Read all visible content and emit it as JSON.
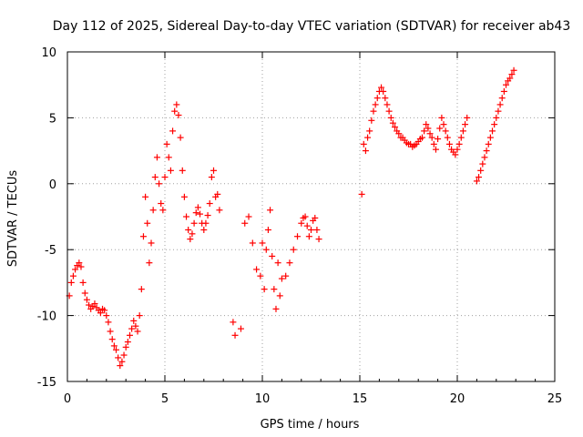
{
  "chart_data": {
    "type": "scatter",
    "title": "Day 112 of 2025, Sidereal Day-to-day VTEC variation (SDTVAR) for receiver ab43",
    "xlabel": "GPS time / hours",
    "ylabel": "SDTVAR / TECUs",
    "xlim": [
      0,
      25
    ],
    "ylim": [
      -15,
      10
    ],
    "xticks": [
      "0",
      "5",
      "10",
      "15",
      "20",
      "25"
    ],
    "yticks": [
      "10",
      "5",
      "0",
      "-5",
      "-10",
      "-15"
    ],
    "grid": true,
    "marker": "+",
    "color": "#ff0000",
    "series": [
      {
        "name": "SDTVAR",
        "x": [
          0.1,
          0.2,
          0.3,
          0.4,
          0.5,
          0.6,
          0.7,
          0.8,
          0.9,
          1.0,
          1.1,
          1.2,
          1.3,
          1.4,
          1.5,
          1.6,
          1.7,
          1.8,
          1.9,
          2.0,
          2.1,
          2.2,
          2.3,
          2.4,
          2.5,
          2.6,
          2.7,
          2.8,
          2.9,
          3.0,
          3.1,
          3.2,
          3.3,
          3.4,
          3.5,
          3.6,
          3.7,
          3.8,
          3.9,
          4.0,
          4.1,
          4.2,
          4.3,
          4.4,
          4.5,
          4.6,
          4.7,
          4.8,
          4.9,
          5.0,
          5.1,
          5.2,
          5.3,
          5.4,
          5.5,
          5.6,
          5.7,
          5.8,
          5.9,
          6.0,
          6.1,
          6.2,
          6.3,
          6.4,
          6.5,
          6.6,
          6.7,
          6.8,
          6.9,
          7.0,
          7.1,
          7.2,
          7.3,
          7.4,
          7.5,
          7.6,
          7.7,
          7.8,
          8.5,
          8.6,
          8.9,
          9.1,
          9.3,
          9.5,
          9.7,
          9.9,
          10.0,
          10.1,
          10.2,
          10.3,
          10.4,
          10.5,
          10.6,
          10.7,
          10.8,
          10.9,
          11.0,
          11.2,
          11.4,
          11.6,
          11.8,
          12.0,
          12.1,
          12.2,
          12.3,
          12.4,
          12.5,
          12.6,
          12.7,
          12.8,
          12.9,
          15.1,
          15.2,
          15.3,
          15.4,
          15.5,
          15.6,
          15.7,
          15.8,
          15.9,
          16.0,
          16.1,
          16.2,
          16.3,
          16.4,
          16.5,
          16.6,
          16.7,
          16.8,
          16.9,
          17.0,
          17.1,
          17.2,
          17.3,
          17.4,
          17.5,
          17.6,
          17.7,
          17.8,
          17.9,
          18.0,
          18.1,
          18.2,
          18.3,
          18.4,
          18.5,
          18.6,
          18.7,
          18.8,
          18.9,
          19.0,
          19.1,
          19.2,
          19.3,
          19.4,
          19.5,
          19.6,
          19.7,
          19.8,
          19.9,
          20.0,
          20.1,
          20.2,
          20.3,
          20.4,
          20.5,
          21.0,
          21.1,
          21.2,
          21.3,
          21.4,
          21.5,
          21.6,
          21.7,
          21.8,
          21.9,
          22.0,
          22.1,
          22.2,
          22.3,
          22.4,
          22.5,
          22.6,
          22.7,
          22.8,
          22.9
        ],
        "y": [
          -8.5,
          -7.5,
          -7.0,
          -6.5,
          -6.2,
          -6.0,
          -6.3,
          -7.5,
          -8.3,
          -8.8,
          -9.2,
          -9.5,
          -9.3,
          -9.1,
          -9.4,
          -9.6,
          -9.8,
          -9.5,
          -9.6,
          -10.0,
          -10.5,
          -11.2,
          -11.8,
          -12.3,
          -12.6,
          -13.2,
          -13.8,
          -13.5,
          -13.0,
          -12.4,
          -12.0,
          -11.5,
          -11.0,
          -10.4,
          -10.8,
          -11.2,
          -10.0,
          -8.0,
          -4.0,
          -1.0,
          -3.0,
          -6.0,
          -4.5,
          -2.0,
          0.5,
          2.0,
          0.0,
          -1.5,
          -2.0,
          0.5,
          3.0,
          2.0,
          1.0,
          4.0,
          5.5,
          6.0,
          5.2,
          3.5,
          1.0,
          -1.0,
          -2.5,
          -3.5,
          -4.2,
          -3.8,
          -3.0,
          -2.2,
          -1.8,
          -2.3,
          -3.0,
          -3.5,
          -3.0,
          -2.4,
          -1.5,
          0.5,
          1.0,
          -1.0,
          -0.8,
          -2.0,
          -10.5,
          -11.5,
          -11.0,
          -3.0,
          -2.5,
          -4.5,
          -6.5,
          -7.0,
          -4.5,
          -8.0,
          -5.0,
          -3.5,
          -2.0,
          -5.5,
          -8.0,
          -9.5,
          -6.0,
          -8.5,
          -7.2,
          -7.0,
          -6.0,
          -5.0,
          -4.0,
          -3.0,
          -2.6,
          -2.5,
          -3.2,
          -4.0,
          -3.5,
          -2.8,
          -2.6,
          -3.5,
          -4.2,
          -0.8,
          3.0,
          2.5,
          3.5,
          4.0,
          4.8,
          5.5,
          6.0,
          6.5,
          7.0,
          7.3,
          7.0,
          6.5,
          6.0,
          5.5,
          5.0,
          4.6,
          4.3,
          4.0,
          3.8,
          3.5,
          3.5,
          3.3,
          3.1,
          3.0,
          3.0,
          2.8,
          2.9,
          3.0,
          3.2,
          3.4,
          3.5,
          4.0,
          4.5,
          4.2,
          3.8,
          3.5,
          3.0,
          2.6,
          3.4,
          4.2,
          5.0,
          4.5,
          4.0,
          3.5,
          3.0,
          2.6,
          2.4,
          2.2,
          2.6,
          3.0,
          3.5,
          4.0,
          4.5,
          5.0,
          0.2,
          0.5,
          1.0,
          1.5,
          2.0,
          2.5,
          3.0,
          3.5,
          4.0,
          4.5,
          5.0,
          5.5,
          6.0,
          6.5,
          7.0,
          7.5,
          7.8,
          8.0,
          8.3,
          8.6
        ]
      }
    ]
  }
}
